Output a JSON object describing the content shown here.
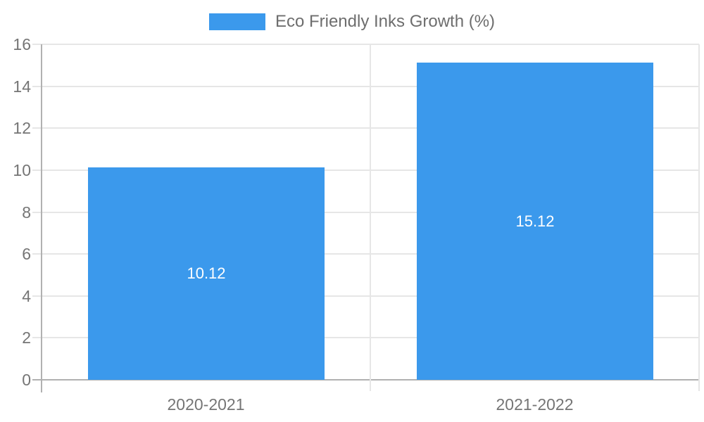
{
  "legend": {
    "label": "Eco Friendly Inks Growth (%)"
  },
  "chart_data": {
    "type": "bar",
    "title": "",
    "categories": [
      "2020-2021",
      "2021-2022"
    ],
    "series": [
      {
        "name": "Eco Friendly Inks Growth (%)",
        "values": [
          10.12,
          15.12
        ]
      }
    ],
    "data_labels": [
      "10.12",
      "15.12"
    ],
    "ylabel": "",
    "xlabel": "",
    "ylim": [
      0,
      16
    ],
    "yticks": [
      0,
      2,
      4,
      6,
      8,
      10,
      12,
      14,
      16
    ],
    "grid": true,
    "legend_position": "top",
    "colors": {
      "bar": "#3B99EC",
      "grid_line": "#E6E6E6",
      "axis_line": "#B1B1B1",
      "tick_text": "#757575",
      "legend_text": "#6E6E6E",
      "data_label_text": "#FFFFFF",
      "background": "#FFFFFF"
    }
  }
}
